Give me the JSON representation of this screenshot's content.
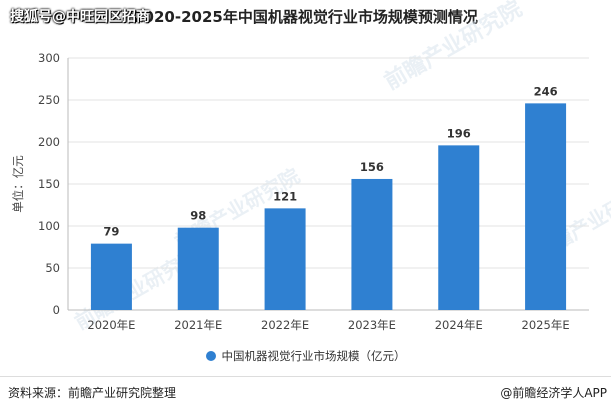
{
  "overlay_text": "搜狐号@中旺园区招商",
  "chart_data": {
    "type": "bar",
    "title": "2020-2025年中国机器视觉行业市场规模预测情况",
    "ylabel": "单位：亿元",
    "xlabel": "",
    "categories": [
      "2020年E",
      "2021年E",
      "2022年E",
      "2023年E",
      "2024年E",
      "2025年E"
    ],
    "series": [
      {
        "name": "中国机器视觉行业市场规模（亿元）",
        "values": [
          79,
          98,
          121,
          156,
          196,
          246
        ]
      }
    ],
    "ylim": [
      0,
      300
    ],
    "yticks": [
      0,
      50,
      100,
      150,
      200,
      250,
      300
    ],
    "grid": true,
    "legend": "bottom",
    "bar_color": "#2f80d1",
    "data_labels": true
  },
  "watermark": "前瞻产业研究院",
  "footer": {
    "source": "资料来源：前瞻产业研究院整理",
    "credit": "@前瞻经济学人APP"
  }
}
